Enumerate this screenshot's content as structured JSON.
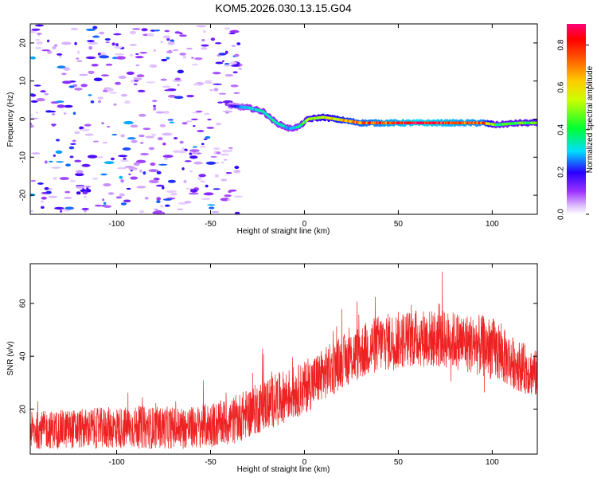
{
  "title": "KOM5.2026.030.13.15.G04",
  "colors": {
    "snr_line": "#ee2222",
    "colorbar": [
      "#ffffff",
      "#d9b3ff",
      "#8b00ff",
      "#2200ff",
      "#00ddff",
      "#00ff33",
      "#ffff00",
      "#ff7700",
      "#ff0000",
      "#ff0088"
    ]
  },
  "chart_data": [
    {
      "type": "heatmap",
      "title": "KOM5.2026.030.13.15.G04",
      "xlabel": "Height of straight line (km)",
      "ylabel": "Frequency (Hz)",
      "xlim": [
        -146,
        124
      ],
      "ylim": [
        -25,
        25
      ],
      "xticks": [
        -100,
        -50,
        0,
        50,
        100
      ],
      "yticks": [
        -20,
        -10,
        0,
        10,
        20
      ],
      "colorbar": {
        "label": "Normalized spectral amplitude",
        "range": [
          0.0,
          0.9
        ],
        "ticks": [
          0.0,
          0.2,
          0.4,
          0.6,
          0.8
        ]
      },
      "ridge": {
        "description_points": [
          {
            "x": -40,
            "freq": 3.5,
            "amp": 0.15
          },
          {
            "x": -30,
            "freq": 3.0,
            "amp": 0.3
          },
          {
            "x": -22,
            "freq": 2.0,
            "amp": 0.35
          },
          {
            "x": -15,
            "freq": -1.0,
            "amp": 0.35
          },
          {
            "x": -8,
            "freq": -2.5,
            "amp": 0.3
          },
          {
            "x": -3,
            "freq": -2.0,
            "amp": 0.35
          },
          {
            "x": 2,
            "freq": 0.0,
            "amp": 0.5
          },
          {
            "x": 10,
            "freq": 0.5,
            "amp": 0.55
          },
          {
            "x": 30,
            "freq": -1.0,
            "amp": 0.7
          },
          {
            "x": 60,
            "freq": -1.0,
            "amp": 0.85
          },
          {
            "x": 95,
            "freq": -1.0,
            "amp": 0.75
          },
          {
            "x": 102,
            "freq": -1.5,
            "amp": 0.4
          },
          {
            "x": 115,
            "freq": -1.0,
            "amp": 0.45
          },
          {
            "x": 124,
            "freq": -1.0,
            "amp": 0.45
          }
        ],
        "noise_region": {
          "x_from": -146,
          "x_to": -38,
          "amp_max": 0.25
        }
      }
    },
    {
      "type": "line",
      "xlabel": "Height of straight line (km)",
      "ylabel": "SNR (v/v)",
      "xlim": [
        -146,
        124
      ],
      "ylim": [
        3,
        75
      ],
      "xticks": [
        -100,
        -50,
        0,
        50,
        100
      ],
      "yticks": [
        20,
        40,
        60
      ],
      "series": [
        {
          "name": "SNR",
          "envelope": [
            {
              "x": -146,
              "mean": 12,
              "spread": 7
            },
            {
              "x": -100,
              "mean": 13,
              "spread": 8
            },
            {
              "x": -60,
              "mean": 13,
              "spread": 8
            },
            {
              "x": -40,
              "mean": 15,
              "spread": 9
            },
            {
              "x": -20,
              "mean": 22,
              "spread": 10
            },
            {
              "x": 0,
              "mean": 28,
              "spread": 10
            },
            {
              "x": 20,
              "mean": 38,
              "spread": 10
            },
            {
              "x": 40,
              "mean": 45,
              "spread": 11
            },
            {
              "x": 60,
              "mean": 47,
              "spread": 11
            },
            {
              "x": 80,
              "mean": 46,
              "spread": 11
            },
            {
              "x": 100,
              "mean": 43,
              "spread": 12
            },
            {
              "x": 110,
              "mean": 38,
              "spread": 10
            },
            {
              "x": 124,
              "mean": 33,
              "spread": 9
            }
          ],
          "peak_max": 72,
          "trough_min": 4
        }
      ]
    }
  ]
}
